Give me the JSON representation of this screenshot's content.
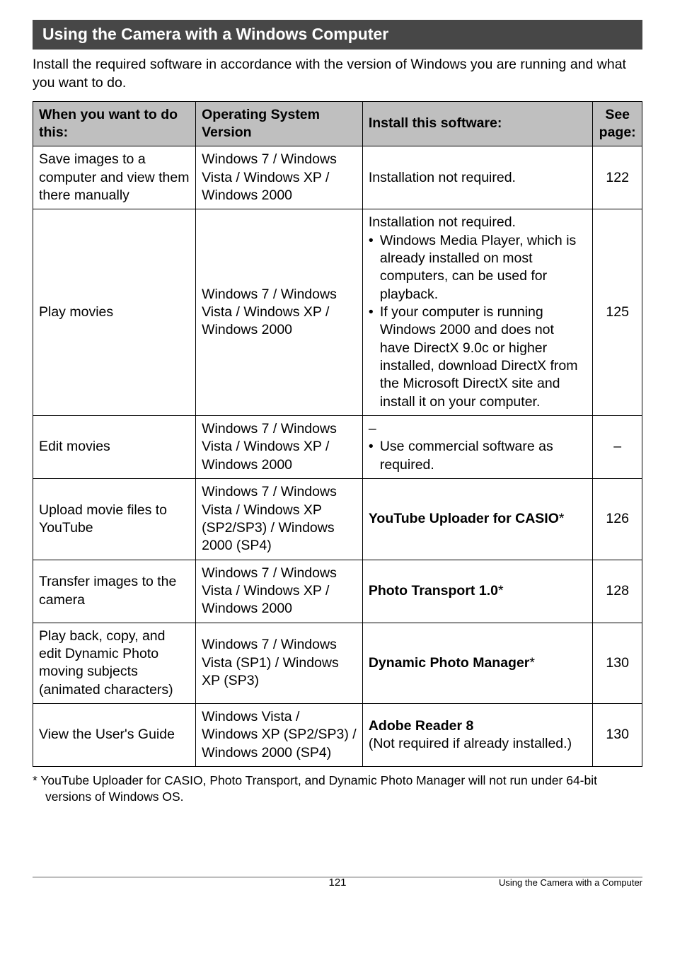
{
  "section_title": "Using the Camera with a Windows Computer",
  "intro_text": "Install the required software in accordance with the version of Windows you are running and what you want to do.",
  "table": {
    "headers": {
      "col1": "When you want to do this:",
      "col2_line1": "Operating System",
      "col2_line2": "Version",
      "col3": "Install this software:",
      "col4_line1": "See",
      "col4_line2": "page:"
    },
    "rows": [
      {
        "task": "Save images to a computer and view them there manually",
        "os": "Windows 7 / Windows Vista / Windows XP / Windows 2000",
        "software_plain": "Installation not required.",
        "page": "122"
      },
      {
        "task": "Play movies",
        "os": "Windows 7 / Windows Vista / Windows XP / Windows 2000",
        "software_lead": "Installation not required.",
        "software_bullets": [
          "Windows Media Player, which is already installed on most computers, can be used for playback.",
          "If your computer is running Windows 2000 and does not have DirectX 9.0c or higher installed, download DirectX from the Microsoft DirectX site and install it on your computer."
        ],
        "page": "125"
      },
      {
        "task": "Edit movies",
        "os": "Windows 7 / Windows Vista / Windows XP / Windows 2000",
        "software_dash": "–",
        "software_bullets": [
          "Use commercial software as required."
        ],
        "page": "–"
      },
      {
        "task": "Upload movie files to YouTube",
        "os": "Windows 7 / Windows Vista / Windows XP (SP2/SP3) / Windows 2000 (SP4)",
        "software_bold": "YouTube Uploader for CASIO",
        "software_suffix": "*",
        "page": "126"
      },
      {
        "task": "Transfer images to the camera",
        "os": "Windows 7 / Windows Vista / Windows XP / Windows 2000",
        "software_bold": "Photo Transport 1.0",
        "software_suffix": "*",
        "page": "128"
      },
      {
        "task": "Play back, copy, and edit Dynamic Photo moving subjects (animated characters)",
        "os": "Windows 7 / Windows Vista (SP1) / Windows XP (SP3)",
        "software_bold": "Dynamic Photo Manager",
        "software_suffix": "*",
        "page": "130"
      },
      {
        "task": "View the User's Guide",
        "os": "Windows Vista / Windows XP (SP2/SP3) / Windows 2000 (SP4)",
        "software_bold": "Adobe Reader 8",
        "software_tail": "(Not required if already installed.)",
        "page": "130"
      }
    ]
  },
  "footnote_marker": "*",
  "footnote_text": "YouTube Uploader for CASIO, Photo Transport, and Dynamic Photo Manager will not run under 64-bit versions of Windows OS.",
  "footer": {
    "page_number": "121",
    "title": "Using the Camera with a Computer"
  },
  "colors": {
    "header_bg": "#474747",
    "header_fg": "#ffffff",
    "th_bg": "#bfbfbf",
    "border": "#000000",
    "footer_line": "#bdbdbd",
    "text": "#000000",
    "page_bg": "#ffffff"
  }
}
